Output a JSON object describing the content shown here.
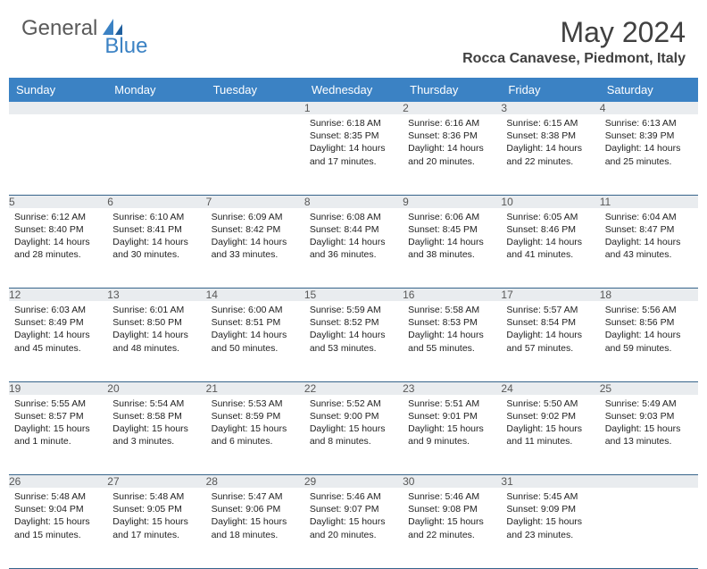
{
  "logo": {
    "text1": "General",
    "text2": "Blue"
  },
  "title": "May 2024",
  "location": "Rocca Canavese, Piedmont, Italy",
  "colors": {
    "header_bg": "#3b82c4",
    "header_text": "#ffffff",
    "daynum_bg": "#e9ecef",
    "daynum_text": "#585858",
    "cell_text": "#222222",
    "rule": "#36648b",
    "logo_gray": "#5a5a5a",
    "logo_blue": "#3b82c4",
    "title_color": "#404040"
  },
  "weekdays": [
    "Sunday",
    "Monday",
    "Tuesday",
    "Wednesday",
    "Thursday",
    "Friday",
    "Saturday"
  ],
  "first_weekday_index": 3,
  "days": [
    {
      "n": 1,
      "sunrise": "6:18 AM",
      "sunset": "8:35 PM",
      "daylight": "14 hours and 17 minutes."
    },
    {
      "n": 2,
      "sunrise": "6:16 AM",
      "sunset": "8:36 PM",
      "daylight": "14 hours and 20 minutes."
    },
    {
      "n": 3,
      "sunrise": "6:15 AM",
      "sunset": "8:38 PM",
      "daylight": "14 hours and 22 minutes."
    },
    {
      "n": 4,
      "sunrise": "6:13 AM",
      "sunset": "8:39 PM",
      "daylight": "14 hours and 25 minutes."
    },
    {
      "n": 5,
      "sunrise": "6:12 AM",
      "sunset": "8:40 PM",
      "daylight": "14 hours and 28 minutes."
    },
    {
      "n": 6,
      "sunrise": "6:10 AM",
      "sunset": "8:41 PM",
      "daylight": "14 hours and 30 minutes."
    },
    {
      "n": 7,
      "sunrise": "6:09 AM",
      "sunset": "8:42 PM",
      "daylight": "14 hours and 33 minutes."
    },
    {
      "n": 8,
      "sunrise": "6:08 AM",
      "sunset": "8:44 PM",
      "daylight": "14 hours and 36 minutes."
    },
    {
      "n": 9,
      "sunrise": "6:06 AM",
      "sunset": "8:45 PM",
      "daylight": "14 hours and 38 minutes."
    },
    {
      "n": 10,
      "sunrise": "6:05 AM",
      "sunset": "8:46 PM",
      "daylight": "14 hours and 41 minutes."
    },
    {
      "n": 11,
      "sunrise": "6:04 AM",
      "sunset": "8:47 PM",
      "daylight": "14 hours and 43 minutes."
    },
    {
      "n": 12,
      "sunrise": "6:03 AM",
      "sunset": "8:49 PM",
      "daylight": "14 hours and 45 minutes."
    },
    {
      "n": 13,
      "sunrise": "6:01 AM",
      "sunset": "8:50 PM",
      "daylight": "14 hours and 48 minutes."
    },
    {
      "n": 14,
      "sunrise": "6:00 AM",
      "sunset": "8:51 PM",
      "daylight": "14 hours and 50 minutes."
    },
    {
      "n": 15,
      "sunrise": "5:59 AM",
      "sunset": "8:52 PM",
      "daylight": "14 hours and 53 minutes."
    },
    {
      "n": 16,
      "sunrise": "5:58 AM",
      "sunset": "8:53 PM",
      "daylight": "14 hours and 55 minutes."
    },
    {
      "n": 17,
      "sunrise": "5:57 AM",
      "sunset": "8:54 PM",
      "daylight": "14 hours and 57 minutes."
    },
    {
      "n": 18,
      "sunrise": "5:56 AM",
      "sunset": "8:56 PM",
      "daylight": "14 hours and 59 minutes."
    },
    {
      "n": 19,
      "sunrise": "5:55 AM",
      "sunset": "8:57 PM",
      "daylight": "15 hours and 1 minute."
    },
    {
      "n": 20,
      "sunrise": "5:54 AM",
      "sunset": "8:58 PM",
      "daylight": "15 hours and 3 minutes."
    },
    {
      "n": 21,
      "sunrise": "5:53 AM",
      "sunset": "8:59 PM",
      "daylight": "15 hours and 6 minutes."
    },
    {
      "n": 22,
      "sunrise": "5:52 AM",
      "sunset": "9:00 PM",
      "daylight": "15 hours and 8 minutes."
    },
    {
      "n": 23,
      "sunrise": "5:51 AM",
      "sunset": "9:01 PM",
      "daylight": "15 hours and 9 minutes."
    },
    {
      "n": 24,
      "sunrise": "5:50 AM",
      "sunset": "9:02 PM",
      "daylight": "15 hours and 11 minutes."
    },
    {
      "n": 25,
      "sunrise": "5:49 AM",
      "sunset": "9:03 PM",
      "daylight": "15 hours and 13 minutes."
    },
    {
      "n": 26,
      "sunrise": "5:48 AM",
      "sunset": "9:04 PM",
      "daylight": "15 hours and 15 minutes."
    },
    {
      "n": 27,
      "sunrise": "5:48 AM",
      "sunset": "9:05 PM",
      "daylight": "15 hours and 17 minutes."
    },
    {
      "n": 28,
      "sunrise": "5:47 AM",
      "sunset": "9:06 PM",
      "daylight": "15 hours and 18 minutes."
    },
    {
      "n": 29,
      "sunrise": "5:46 AM",
      "sunset": "9:07 PM",
      "daylight": "15 hours and 20 minutes."
    },
    {
      "n": 30,
      "sunrise": "5:46 AM",
      "sunset": "9:08 PM",
      "daylight": "15 hours and 22 minutes."
    },
    {
      "n": 31,
      "sunrise": "5:45 AM",
      "sunset": "9:09 PM",
      "daylight": "15 hours and 23 minutes."
    }
  ],
  "labels": {
    "sunrise": "Sunrise:",
    "sunset": "Sunset:",
    "daylight": "Daylight:"
  }
}
